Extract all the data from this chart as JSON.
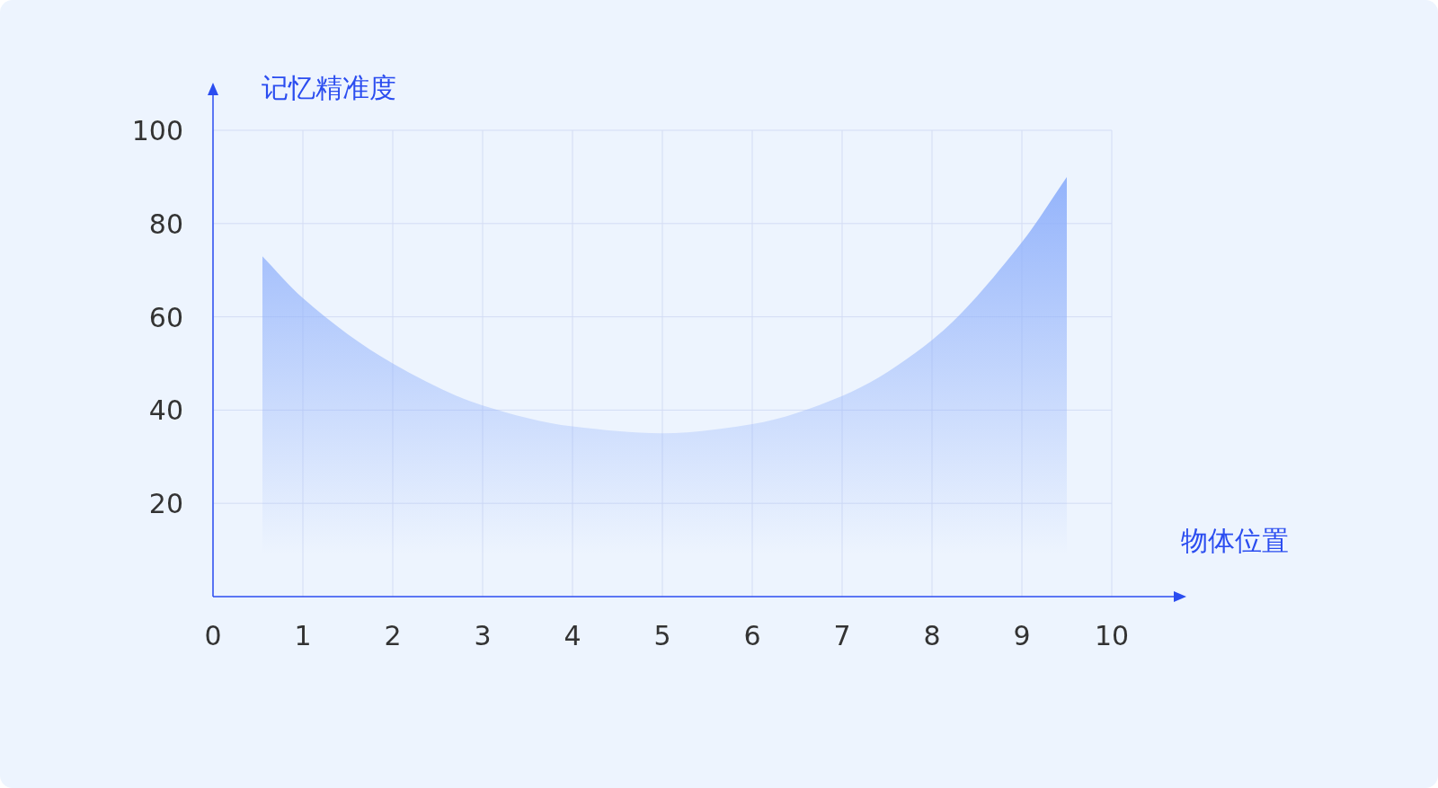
{
  "chart_data": {
    "type": "area",
    "xlabel": "物体位置",
    "ylabel": "记忆精准度",
    "x": [
      0.55,
      1,
      2,
      3,
      4,
      5,
      6,
      7,
      8,
      9,
      9.5
    ],
    "series": [
      {
        "color": "#8fb0fb",
        "values": [
          73,
          64,
          50,
          41,
          36.5,
          35,
          37,
          43,
          55,
          76,
          90
        ]
      }
    ],
    "xlim": [
      0,
      10
    ],
    "ylim": [
      0,
      100
    ],
    "xticks": [
      0,
      1,
      2,
      3,
      4,
      5,
      6,
      7,
      8,
      9,
      10
    ],
    "yticks": [
      20,
      40,
      60,
      80,
      100
    ],
    "grid": true
  }
}
